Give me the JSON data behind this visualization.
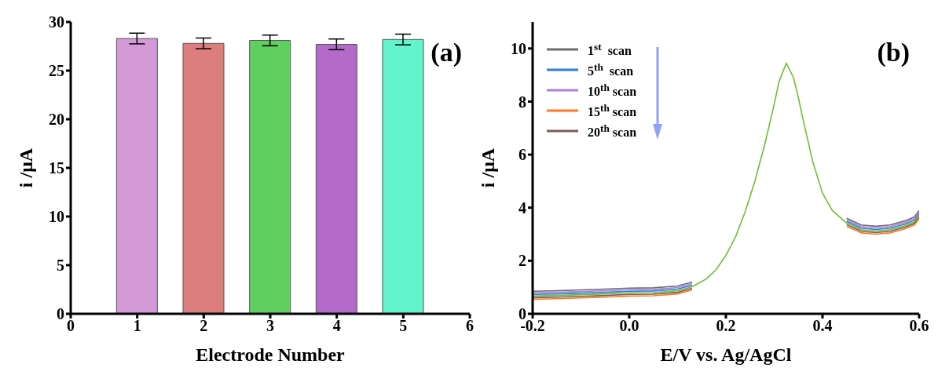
{
  "chart_data": [
    {
      "type": "bar",
      "xlabel": "Electrode Number",
      "ylabel": "i /μA",
      "x": [
        1,
        2,
        3,
        4,
        5
      ],
      "values": [
        28.3,
        27.8,
        28.1,
        27.7,
        28.2
      ],
      "errors": [
        0.55,
        0.55,
        0.55,
        0.55,
        0.55
      ],
      "colors": [
        "#d49ad8",
        "#dc7e7e",
        "#5fd060",
        "#b46ac8",
        "#62f4cc"
      ],
      "xlim": [
        0,
        6
      ],
      "xticks": [
        0,
        1,
        2,
        3,
        4,
        5,
        6
      ],
      "ylim": [
        0,
        30
      ],
      "yticks": [
        0,
        5,
        10,
        15,
        20,
        25,
        30
      ],
      "grid": false,
      "legend": false,
      "annotations": [
        "(a)"
      ]
    },
    {
      "type": "line",
      "xlabel": "E/V vs. Ag/AgCl",
      "ylabel": "i /μA",
      "marker": "none",
      "legend": "top left",
      "grid": false,
      "annotations": [
        "(b)"
      ],
      "x": [
        -0.2,
        -0.15,
        -0.1,
        -0.05,
        0,
        0.05,
        0.1,
        0.13,
        0.16,
        0.18,
        0.2,
        0.22,
        0.24,
        0.26,
        0.28,
        0.3,
        0.31,
        0.325,
        0.34,
        0.35,
        0.36,
        0.38,
        0.4,
        0.42,
        0.45,
        0.48,
        0.51,
        0.54,
        0.57,
        0.59,
        0.6
      ],
      "xlim": [
        -0.2,
        0.6
      ],
      "xticks": [
        {
          "value": -0.2,
          "label": "-0.2"
        },
        {
          "value": 0,
          "label": "0.0"
        },
        0.2,
        0.4,
        0.6
      ],
      "ylim": [
        0,
        11
      ],
      "yticks": [
        0,
        2,
        4,
        6,
        8,
        10
      ],
      "series": [
        {
          "name": "1$^{st}$  scan",
          "color": "#6e6e6e",
          "values": [
            0.85,
            0.87,
            0.9,
            0.93,
            0.97,
            0.98,
            1.05,
            1.2,
            null,
            null,
            null,
            null,
            null,
            null,
            null,
            null,
            null,
            null,
            null,
            null,
            null,
            null,
            null,
            null,
            3.6,
            3.35,
            3.3,
            3.35,
            3.5,
            3.65,
            3.9
          ]
        },
        {
          "name": "5$^{th}$  scan",
          "color": "#2a7ee0",
          "values": [
            0.73,
            0.75,
            0.78,
            0.81,
            0.85,
            0.86,
            0.93,
            1.08,
            null,
            null,
            null,
            null,
            null,
            null,
            null,
            null,
            null,
            null,
            null,
            null,
            null,
            null,
            null,
            null,
            3.48,
            3.23,
            3.18,
            3.23,
            3.38,
            3.53,
            3.78
          ]
        },
        {
          "name": "10$^{th}$ scan",
          "color": "#b07ee0",
          "values": [
            0.79,
            0.81,
            0.84,
            0.87,
            0.91,
            0.92,
            0.99,
            1.14,
            null,
            null,
            null,
            null,
            null,
            null,
            null,
            null,
            null,
            null,
            null,
            null,
            null,
            null,
            null,
            null,
            3.54,
            3.29,
            3.24,
            3.29,
            3.44,
            3.59,
            3.84
          ]
        },
        {
          "name": "15$^{th}$ scan",
          "color": "#ff7a20",
          "values": [
            0.55,
            0.57,
            0.6,
            0.63,
            0.67,
            0.68,
            0.75,
            0.9,
            null,
            null,
            null,
            null,
            null,
            null,
            null,
            null,
            null,
            null,
            null,
            null,
            null,
            null,
            null,
            null,
            3.3,
            3.05,
            3.0,
            3.05,
            3.2,
            3.35,
            3.6
          ]
        },
        {
          "name": "20$^{th}$ scan",
          "color": "#7a5a5a",
          "values": [
            0.61,
            0.63,
            0.66,
            0.69,
            0.73,
            0.74,
            0.81,
            0.96,
            null,
            null,
            null,
            null,
            null,
            null,
            null,
            null,
            null,
            null,
            null,
            null,
            null,
            null,
            null,
            null,
            3.36,
            3.11,
            3.06,
            3.11,
            3.26,
            3.41,
            3.66
          ]
        },
        {
          "color": "#6cbf30",
          "values": [
            0.67,
            0.69,
            0.72,
            0.75,
            0.79,
            0.8,
            0.87,
            1.02,
            1.32,
            1.67,
            2.2,
            2.9,
            3.85,
            5.0,
            6.35,
            7.9,
            8.75,
            9.45,
            8.9,
            8.15,
            7.3,
            5.72,
            4.55,
            3.9,
            3.42,
            3.17,
            3.12,
            3.17,
            3.32,
            3.47,
            3.72
          ]
        }
      ]
    }
  ]
}
